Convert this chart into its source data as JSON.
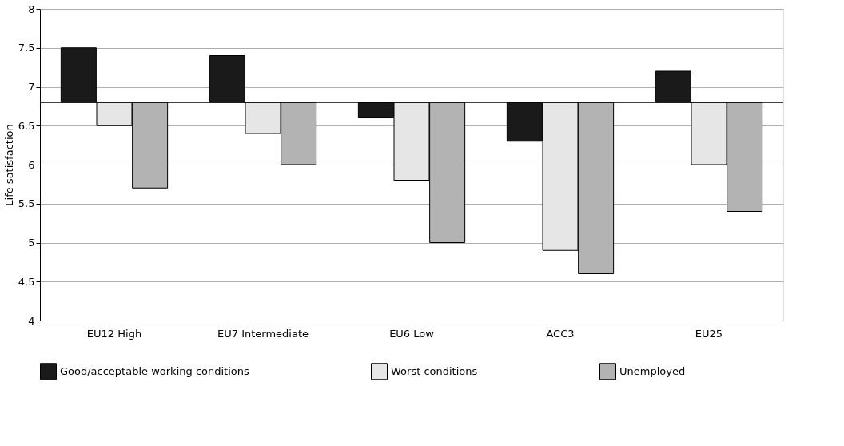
{
  "chart_data": {
    "type": "bar",
    "ylabel": "Life satisfaction",
    "categories": [
      "EU12 High",
      "EU7 Intermediate",
      "EU6 Low",
      "ACC3",
      "EU25"
    ],
    "series": [
      {
        "name": "Good/acceptable working conditions",
        "color": "#1a1a1a",
        "values": [
          0.7,
          0.6,
          -0.2,
          -0.5,
          0.4
        ],
        "base": [
          6.8,
          6.8,
          6.8,
          6.8,
          6.8
        ]
      },
      {
        "name": "Worst conditions",
        "color": "#e6e6e6",
        "values": [
          -0.3,
          -0.4,
          -1.0,
          -1.9,
          -0.8
        ],
        "base": [
          6.8,
          6.8,
          6.8,
          6.8,
          6.8
        ]
      },
      {
        "name": "Unemployed",
        "color": "#b3b3b3",
        "values": [
          -1.1,
          -0.8,
          -1.8,
          -2.2,
          -1.4
        ],
        "base": [
          6.8,
          6.8,
          6.8,
          6.8,
          6.8
        ]
      }
    ],
    "ylim": [
      4,
      8
    ],
    "yticks": [
      4,
      4.5,
      5,
      5.5,
      6,
      6.5,
      7,
      7.5,
      8
    ],
    "ref_lines": [
      {
        "axis": "y",
        "value": 6.8,
        "color": "#000000"
      }
    ],
    "grid": "y",
    "legend": "bottom"
  }
}
